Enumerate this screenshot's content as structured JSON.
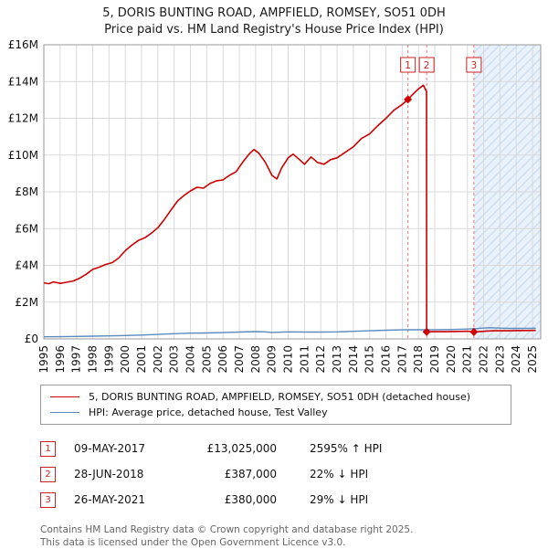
{
  "title": {
    "line1": "5, DORIS BUNTING ROAD, AMPFIELD, ROMSEY, SO51 0DH",
    "line2": "Price paid vs. HM Land Registry's House Price Index (HPI)"
  },
  "colors": {
    "property_line": "#cc0000",
    "hpi_line": "#5b8abf",
    "dashed_marker_line": "#e57b7b",
    "marker_box_border": "#cc2222",
    "grid": "#d9d9d9",
    "plot_border": "#999999",
    "shade_fill": "#e9f1fa",
    "shade_hatch": "#c9dcf0"
  },
  "chart_data": {
    "type": "line",
    "x_range": [
      1995,
      2025.5
    ],
    "y_range": [
      0,
      16000000
    ],
    "grid": true,
    "legend_position": "bottom",
    "x_ticks": [
      1995,
      1996,
      1997,
      1998,
      1999,
      2000,
      2001,
      2002,
      2003,
      2004,
      2005,
      2006,
      2007,
      2008,
      2009,
      2010,
      2011,
      2012,
      2013,
      2014,
      2015,
      2016,
      2017,
      2018,
      2019,
      2020,
      2021,
      2022,
      2023,
      2024,
      2025
    ],
    "y_ticks": [
      {
        "value": 0,
        "label": "£0"
      },
      {
        "value": 2000000,
        "label": "£2M"
      },
      {
        "value": 4000000,
        "label": "£4M"
      },
      {
        "value": 6000000,
        "label": "£6M"
      },
      {
        "value": 8000000,
        "label": "£8M"
      },
      {
        "value": 10000000,
        "label": "£10M"
      },
      {
        "value": 12000000,
        "label": "£12M"
      },
      {
        "value": 14000000,
        "label": "£14M"
      },
      {
        "value": 16000000,
        "label": "£16M"
      }
    ],
    "shaded_region": {
      "from": 2021.4,
      "to": 2025.5
    },
    "series": [
      {
        "name": "5, DORIS BUNTING ROAD, AMPFIELD, ROMSEY, SO51 0DH (detached house)",
        "color": "#cc0000",
        "width": 1.6,
        "points": [
          [
            1995.0,
            3050000
          ],
          [
            1995.3,
            3000000
          ],
          [
            1995.6,
            3100000
          ],
          [
            1996.0,
            3020000
          ],
          [
            1996.4,
            3080000
          ],
          [
            1996.8,
            3150000
          ],
          [
            1997.2,
            3300000
          ],
          [
            1997.6,
            3520000
          ],
          [
            1998.0,
            3780000
          ],
          [
            1998.4,
            3900000
          ],
          [
            1998.8,
            4050000
          ],
          [
            1999.2,
            4150000
          ],
          [
            1999.6,
            4400000
          ],
          [
            2000.0,
            4800000
          ],
          [
            2000.4,
            5100000
          ],
          [
            2000.8,
            5350000
          ],
          [
            2001.2,
            5500000
          ],
          [
            2001.6,
            5750000
          ],
          [
            2002.0,
            6050000
          ],
          [
            2002.4,
            6500000
          ],
          [
            2002.8,
            7000000
          ],
          [
            2003.2,
            7500000
          ],
          [
            2003.6,
            7800000
          ],
          [
            2004.0,
            8050000
          ],
          [
            2004.4,
            8250000
          ],
          [
            2004.8,
            8200000
          ],
          [
            2005.2,
            8450000
          ],
          [
            2005.6,
            8600000
          ],
          [
            2006.0,
            8650000
          ],
          [
            2006.4,
            8900000
          ],
          [
            2006.8,
            9100000
          ],
          [
            2007.2,
            9600000
          ],
          [
            2007.6,
            10050000
          ],
          [
            2007.9,
            10300000
          ],
          [
            2008.2,
            10100000
          ],
          [
            2008.6,
            9600000
          ],
          [
            2009.0,
            8900000
          ],
          [
            2009.3,
            8700000
          ],
          [
            2009.6,
            9300000
          ],
          [
            2010.0,
            9850000
          ],
          [
            2010.3,
            10050000
          ],
          [
            2010.7,
            9750000
          ],
          [
            2011.0,
            9500000
          ],
          [
            2011.4,
            9900000
          ],
          [
            2011.8,
            9600000
          ],
          [
            2012.2,
            9500000
          ],
          [
            2012.6,
            9750000
          ],
          [
            2013.0,
            9850000
          ],
          [
            2013.5,
            10150000
          ],
          [
            2014.0,
            10450000
          ],
          [
            2014.5,
            10900000
          ],
          [
            2015.0,
            11150000
          ],
          [
            2015.5,
            11600000
          ],
          [
            2016.0,
            12000000
          ],
          [
            2016.5,
            12450000
          ],
          [
            2017.0,
            12750000
          ],
          [
            2017.35,
            13025000
          ],
          [
            2017.7,
            13350000
          ],
          [
            2018.0,
            13600000
          ],
          [
            2018.3,
            13800000
          ],
          [
            2018.49,
            13450000
          ],
          [
            2018.5,
            387000
          ],
          [
            2019.0,
            392000
          ],
          [
            2019.5,
            395000
          ],
          [
            2020.0,
            400000
          ],
          [
            2020.5,
            408000
          ],
          [
            2021.0,
            415000
          ],
          [
            2021.4,
            380000
          ],
          [
            2021.8,
            400000
          ],
          [
            2022.2,
            425000
          ],
          [
            2022.6,
            440000
          ],
          [
            2023.0,
            448000
          ],
          [
            2023.5,
            442000
          ],
          [
            2024.0,
            450000
          ],
          [
            2024.5,
            458000
          ],
          [
            2025.2,
            462000
          ]
        ]
      },
      {
        "name": "HPI: Average price, detached house, Test Valley",
        "color": "#5b8abf",
        "width": 1.4,
        "points": [
          [
            1995.0,
            115000
          ],
          [
            1996.0,
            120000
          ],
          [
            1997.0,
            132000
          ],
          [
            1998.0,
            148000
          ],
          [
            1999.0,
            162000
          ],
          [
            2000.0,
            186000
          ],
          [
            2001.0,
            210000
          ],
          [
            2002.0,
            242000
          ],
          [
            2003.0,
            285000
          ],
          [
            2004.0,
            315000
          ],
          [
            2005.0,
            325000
          ],
          [
            2006.0,
            342000
          ],
          [
            2007.0,
            372000
          ],
          [
            2008.0,
            396000
          ],
          [
            2008.5,
            390000
          ],
          [
            2009.0,
            352000
          ],
          [
            2010.0,
            382000
          ],
          [
            2011.0,
            374000
          ],
          [
            2012.0,
            371000
          ],
          [
            2013.0,
            381000
          ],
          [
            2014.0,
            412000
          ],
          [
            2015.0,
            442000
          ],
          [
            2016.0,
            470000
          ],
          [
            2017.0,
            490000
          ],
          [
            2017.5,
            495000
          ],
          [
            2018.0,
            498000
          ],
          [
            2019.0,
            500000
          ],
          [
            2020.0,
            512000
          ],
          [
            2021.0,
            537000
          ],
          [
            2021.5,
            556000
          ],
          [
            2022.0,
            592000
          ],
          [
            2022.5,
            606000
          ],
          [
            2023.0,
            588000
          ],
          [
            2023.5,
            575000
          ],
          [
            2024.0,
            570000
          ],
          [
            2024.6,
            575000
          ],
          [
            2025.2,
            580000
          ]
        ]
      }
    ],
    "markers": [
      {
        "label": "1",
        "x": 2017.35,
        "y": 13025000
      },
      {
        "label": "2",
        "x": 2018.5,
        "y": 387000
      },
      {
        "label": "3",
        "x": 2021.4,
        "y": 380000
      }
    ]
  },
  "legend": {
    "entries": [
      {
        "label": "5, DORIS BUNTING ROAD, AMPFIELD, ROMSEY, SO51 0DH (detached house)"
      },
      {
        "label": "HPI: Average price, detached house, Test Valley"
      }
    ]
  },
  "table": {
    "rows": [
      {
        "num": "1",
        "date": "09-MAY-2017",
        "price": "£13,025,000",
        "hpi": "2595% ↑ HPI"
      },
      {
        "num": "2",
        "date": "28-JUN-2018",
        "price": "£387,000",
        "hpi": "22% ↓ HPI"
      },
      {
        "num": "3",
        "date": "26-MAY-2021",
        "price": "£380,000",
        "hpi": "29% ↓ HPI"
      }
    ]
  },
  "footer": {
    "line1": "Contains HM Land Registry data © Crown copyright and database right 2025.",
    "line2": "This data is licensed under the Open Government Licence v3.0."
  }
}
